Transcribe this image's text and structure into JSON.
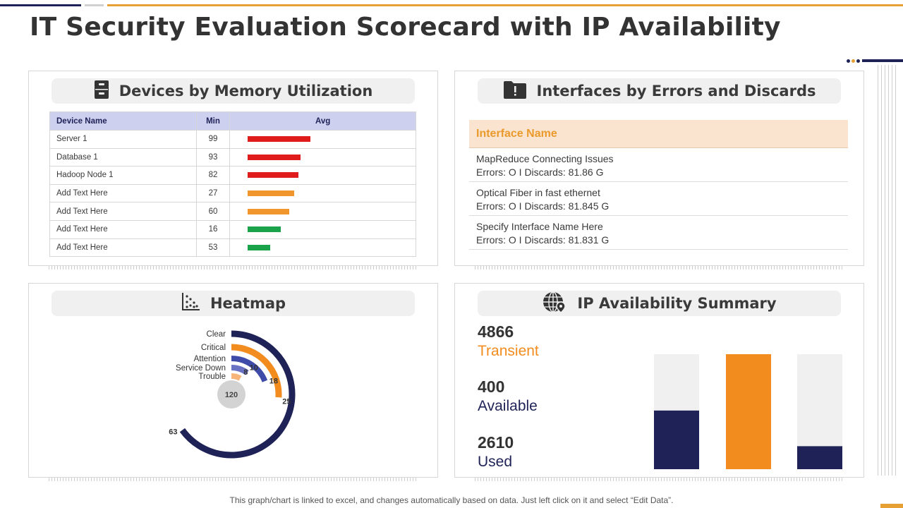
{
  "page": {
    "title": "IT Security Evaluation Scorecard with IP Availability",
    "footer_note": "This graph/chart is linked to excel, and changes automatically based on data. Just left click on it and select “Edit Data”."
  },
  "colors": {
    "navy": "#1e2257",
    "orange": "#f28c1e",
    "red": "#e01b1b",
    "amber": "#f0962c",
    "green": "#1aa34a",
    "light_gray": "#f0f0f0",
    "indigo": "#3e4ba8",
    "periwinkle": "#6a72c4",
    "peach": "#f7b57a"
  },
  "devices_panel": {
    "title": "Devices by Memory Utilization",
    "icon": "file-cabinet-icon",
    "columns": [
      "Device Name",
      "Min",
      "Avg"
    ],
    "rows": [
      {
        "name": "Server 1",
        "min": "99",
        "avg_pct": 0.89,
        "color": "#e01b1b"
      },
      {
        "name": "Database 1",
        "min": "93",
        "avg_pct": 0.75,
        "color": "#e01b1b"
      },
      {
        "name": "Hadoop Node 1",
        "min": "82",
        "avg_pct": 0.72,
        "color": "#e01b1b"
      },
      {
        "name": "Add Text Here",
        "min": "27",
        "avg_pct": 0.66,
        "color": "#f0962c"
      },
      {
        "name": "Add Text Here",
        "min": "60",
        "avg_pct": 0.59,
        "color": "#f0962c"
      },
      {
        "name": "Add Text Here",
        "min": "16",
        "avg_pct": 0.47,
        "color": "#1aa34a"
      },
      {
        "name": "Add Text Here",
        "min": "53",
        "avg_pct": 0.32,
        "color": "#1aa34a"
      }
    ]
  },
  "interfaces_panel": {
    "title": "Interfaces by Errors and Discards",
    "icon": "folder-alert-icon",
    "column_header": "Interface Name",
    "rows": [
      {
        "name": "MapReduce Connecting Issues",
        "detail": "Errors: O I Discards: 81.86 G"
      },
      {
        "name": "Optical Fiber in fast ethernet",
        "detail": "Errors: O I Discards: 81.845 G"
      },
      {
        "name": "Specify Interface Name Here",
        "detail": "Errors: O I Discards: 81.831 G"
      }
    ]
  },
  "heatmap_panel": {
    "title": "Heatmap",
    "icon": "scatter-plot-icon",
    "center_value": "120",
    "rings": [
      {
        "label": "Clear",
        "value": "63",
        "color": "#1e2257",
        "fraction": 0.65
      },
      {
        "label": "Critical",
        "value": "25",
        "color": "#f28c1e",
        "fraction": 0.26
      },
      {
        "label": "Attention",
        "value": "18",
        "color": "#3e4ba8",
        "fraction": 0.19
      },
      {
        "label": "Service Down",
        "value": "10",
        "color": "#6a72c4",
        "fraction": 0.1
      },
      {
        "label": "Trouble",
        "value": "8",
        "color": "#f7b57a",
        "fraction": 0.08
      }
    ]
  },
  "ip_panel": {
    "title": "IP Availability Summary",
    "icon": "globe-pin-icon",
    "stats": [
      {
        "value": "4866",
        "label": "Transient",
        "color": "#f28c1e"
      },
      {
        "value": "400",
        "label": "Available",
        "color": "#1e2257"
      },
      {
        "value": "2610",
        "label": "Used",
        "color": "#1e2257"
      }
    ],
    "bars": [
      {
        "fill_fraction": 0.51,
        "color": "#1e2257"
      },
      {
        "fill_fraction": 1.0,
        "color": "#f28c1e"
      },
      {
        "fill_fraction": 0.2,
        "color": "#1e2257"
      }
    ]
  }
}
